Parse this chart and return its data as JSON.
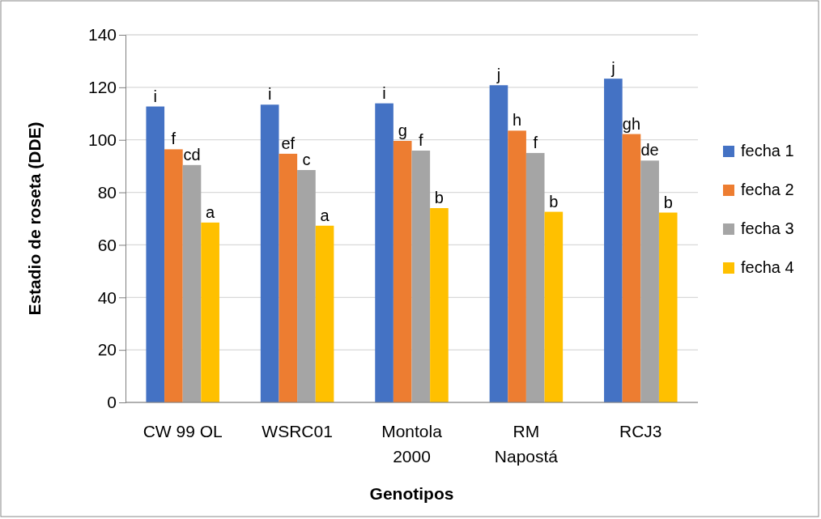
{
  "chart_data": {
    "type": "bar",
    "xlabel": "Genotipos",
    "ylabel": "Estadio de roseta (DDE)",
    "categories": [
      "CW 99 OL",
      "WSRC01",
      "Montola\n2000",
      "RM\nNapostá",
      "RCJ3"
    ],
    "series": [
      {
        "name": "fecha 1",
        "color": "#4472c4",
        "values": [
          112.7,
          113.4,
          113.9,
          120.8,
          123.3
        ],
        "value_labels": [
          "i",
          "i",
          "i",
          "j",
          "j"
        ]
      },
      {
        "name": "fecha 2",
        "color": "#ed7d31",
        "values": [
          96.4,
          94.7,
          99.6,
          103.5,
          102.2
        ],
        "value_labels": [
          "f",
          "ef",
          "g",
          "h",
          "gh"
        ]
      },
      {
        "name": "fecha 3",
        "color": "#a5a5a5",
        "values": [
          90.4,
          88.5,
          95.9,
          95.0,
          92.1
        ],
        "value_labels": [
          "cd",
          "c",
          "f",
          "f",
          "de"
        ]
      },
      {
        "name": "fecha 4",
        "color": "#ffc000",
        "values": [
          68.5,
          67.3,
          74.0,
          72.6,
          72.3
        ],
        "value_labels": [
          "a",
          "a",
          "b",
          "b",
          "b"
        ]
      }
    ],
    "ylim": [
      0,
      140
    ],
    "yticks": [
      0,
      20,
      40,
      60,
      80,
      100,
      120,
      140
    ],
    "grid": "y",
    "legend": "right"
  }
}
